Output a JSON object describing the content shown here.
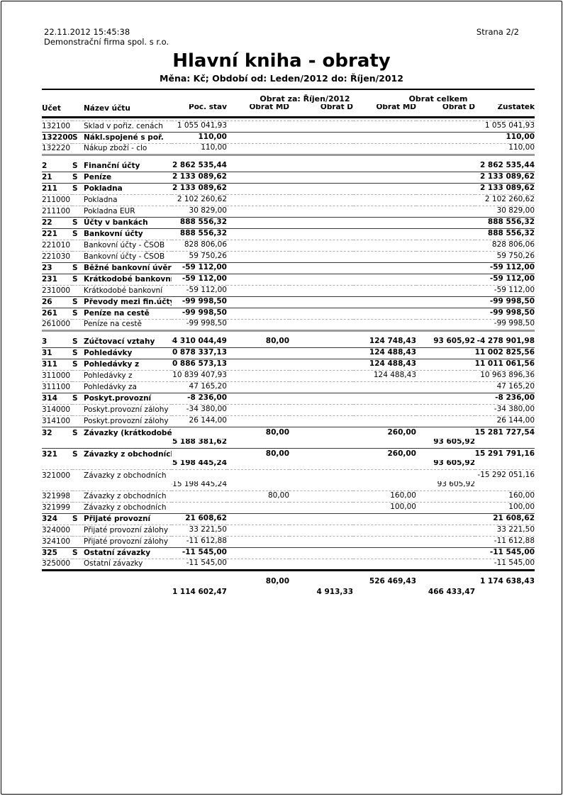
{
  "page": {
    "printed_at": "22.11.2012 15:45:38",
    "page_label": "Strana 2/2",
    "company": "Demonstrační firma spol. s r.o.",
    "title": "Hlavní kniha - obraty",
    "subtitle": "Měna: Kč; Období od: Leden/2012 do: Říjen/2012"
  },
  "table": {
    "group_headers": {
      "period": "Obrat za: Říjen/2012",
      "total": "Obrat celkem"
    },
    "columns": [
      "Účet",
      "",
      "Název účtu",
      "Poč. stav",
      "Obrat MD",
      "Obrat D",
      "Obrat MD",
      "Obrat D",
      "Zůstatek"
    ],
    "rows": [
      {
        "code": "132100",
        "s": "",
        "name": "Sklad v pořiz. cenách",
        "ps": "1 055 041,93",
        "mdr": "",
        "dr": "",
        "mdc": "",
        "dc": "",
        "z": "1 055 041,93",
        "style": "detail"
      },
      {
        "code": "132200",
        "s": "S",
        "name": "Nákl.spojené s poř.",
        "ps": "110,00",
        "mdr": "",
        "dr": "",
        "mdc": "",
        "dc": "",
        "z": "110,00",
        "style": "group"
      },
      {
        "code": "132220",
        "s": "",
        "name": "Nákup zboží - clo",
        "ps": "110,00",
        "mdr": "",
        "dr": "",
        "mdc": "",
        "dc": "",
        "z": "110,00",
        "style": "detail"
      },
      {
        "code": "2",
        "s": "S",
        "name": "Finanční účty",
        "ps": "2 862 535,44",
        "mdr": "",
        "dr": "",
        "mdc": "",
        "dc": "",
        "z": "2 862 535,44",
        "style": "class"
      },
      {
        "code": "21",
        "s": "S",
        "name": "Peníze",
        "ps": "2 133 089,62",
        "mdr": "",
        "dr": "",
        "mdc": "",
        "dc": "",
        "z": "2 133 089,62",
        "style": "group"
      },
      {
        "code": "211",
        "s": "S",
        "name": "Pokladna",
        "ps": "2 133 089,62",
        "mdr": "",
        "dr": "",
        "mdc": "",
        "dc": "",
        "z": "2 133 089,62",
        "style": "group"
      },
      {
        "code": "211000",
        "s": "",
        "name": "Pokladna",
        "ps": "2 102 260,62",
        "mdr": "",
        "dr": "",
        "mdc": "",
        "dc": "",
        "z": "2 102 260,62",
        "style": "detail"
      },
      {
        "code": "211100",
        "s": "",
        "name": "Pokladna EUR",
        "ps": "30 829,00",
        "mdr": "",
        "dr": "",
        "mdc": "",
        "dc": "",
        "z": "30 829,00",
        "style": "detail"
      },
      {
        "code": "22",
        "s": "S",
        "name": "Účty v bankách",
        "ps": "888 556,32",
        "mdr": "",
        "dr": "",
        "mdc": "",
        "dc": "",
        "z": "888 556,32",
        "style": "group"
      },
      {
        "code": "221",
        "s": "S",
        "name": "Bankovní účty",
        "ps": "888 556,32",
        "mdr": "",
        "dr": "",
        "mdc": "",
        "dc": "",
        "z": "888 556,32",
        "style": "group"
      },
      {
        "code": "221010",
        "s": "",
        "name": "Bankovní účty - ČSOB",
        "ps": "828 806,06",
        "mdr": "",
        "dr": "",
        "mdc": "",
        "dc": "",
        "z": "828 806,06",
        "style": "detail"
      },
      {
        "code": "221030",
        "s": "",
        "name": "Bankovní účty - ČSOB",
        "ps": "59 750,26",
        "mdr": "",
        "dr": "",
        "mdc": "",
        "dc": "",
        "z": "59 750,26",
        "style": "detail"
      },
      {
        "code": "23",
        "s": "S",
        "name": "Běžné bankovní úvěry",
        "ps": "-59 112,00",
        "mdr": "",
        "dr": "",
        "mdc": "",
        "dc": "",
        "z": "-59 112,00",
        "style": "group"
      },
      {
        "code": "231",
        "s": "S",
        "name": "Krátkodobé bankovní",
        "ps": "-59 112,00",
        "mdr": "",
        "dr": "",
        "mdc": "",
        "dc": "",
        "z": "-59 112,00",
        "style": "group"
      },
      {
        "code": "231000",
        "s": "",
        "name": "Krátkodobé bankovní",
        "ps": "-59 112,00",
        "mdr": "",
        "dr": "",
        "mdc": "",
        "dc": "",
        "z": "-59 112,00",
        "style": "detail"
      },
      {
        "code": "26",
        "s": "S",
        "name": "Převody mezi fin.účty",
        "ps": "-99 998,50",
        "mdr": "",
        "dr": "",
        "mdc": "",
        "dc": "",
        "z": "-99 998,50",
        "style": "group"
      },
      {
        "code": "261",
        "s": "S",
        "name": "Peníze na cestě",
        "ps": "-99 998,50",
        "mdr": "",
        "dr": "",
        "mdc": "",
        "dc": "",
        "z": "-99 998,50",
        "style": "group"
      },
      {
        "code": "261000",
        "s": "",
        "name": "Peníze na cestě",
        "ps": "-99 998,50",
        "mdr": "",
        "dr": "",
        "mdc": "",
        "dc": "",
        "z": "-99 998,50",
        "style": "detail"
      },
      {
        "code": "3",
        "s": "S",
        "name": "Zúčtovací vztahy",
        "ps": "-4 310 044,49",
        "mdr": "80,00",
        "dr": "",
        "mdc": "124 748,43",
        "dc": "93 605,92",
        "z": "-4 278 901,98",
        "style": "class"
      },
      {
        "code": "31",
        "s": "S",
        "name": "Pohledávky",
        "ps": "10 878 337,13",
        "mdr": "",
        "dr": "",
        "mdc": "124 488,43",
        "dc": "",
        "z": "11 002 825,56",
        "style": "group"
      },
      {
        "code": "311",
        "s": "S",
        "name": "Pohledávky z",
        "ps": "10 886 573,13",
        "mdr": "",
        "dr": "",
        "mdc": "124 488,43",
        "dc": "",
        "z": "11 011 061,56",
        "style": "group"
      },
      {
        "code": "311000",
        "s": "",
        "name": "Pohledávky z",
        "ps": "10 839 407,93",
        "mdr": "",
        "dr": "",
        "mdc": "124 488,43",
        "dc": "",
        "z": "10 963 896,36",
        "style": "detail"
      },
      {
        "code": "311100",
        "s": "",
        "name": "Pohledávky za",
        "ps": "47 165,20",
        "mdr": "",
        "dr": "",
        "mdc": "",
        "dc": "",
        "z": "47 165,20",
        "style": "detail"
      },
      {
        "code": "314",
        "s": "S",
        "name": "Poskyt.provozní",
        "ps": "-8 236,00",
        "mdr": "",
        "dr": "",
        "mdc": "",
        "dc": "",
        "z": "-8 236,00",
        "style": "group"
      },
      {
        "code": "314000",
        "s": "",
        "name": "Poskyt.provozní zálohy",
        "ps": "-34 380,00",
        "mdr": "",
        "dr": "",
        "mdc": "",
        "dc": "",
        "z": "-34 380,00",
        "style": "detail"
      },
      {
        "code": "314100",
        "s": "",
        "name": "Poskyt.provozní zálohy",
        "ps": "26 144,00",
        "mdr": "",
        "dr": "",
        "mdc": "",
        "dc": "",
        "z": "26 144,00",
        "style": "detail"
      },
      {
        "code": "32",
        "s": "S",
        "name": "Závazky (krátkodobé)",
        "ps": "",
        "mdr": "80,00",
        "dr": "",
        "mdc": "260,00",
        "dc": "",
        "z": "-15 281 727,54",
        "style": "group",
        "line2": {
          "ps": "-15 188 381,62",
          "dc": "93 605,92"
        }
      },
      {
        "code": "321",
        "s": "S",
        "name": "Závazky z obchodních",
        "ps": "",
        "mdr": "80,00",
        "dr": "",
        "mdc": "260,00",
        "dc": "",
        "z": "-15 291 791,16",
        "style": "group",
        "line2": {
          "ps": "-15 198 445,24",
          "dc": "93 605,92"
        }
      },
      {
        "code": "321000",
        "s": "",
        "name": "Závazky z obchodních",
        "ps": "",
        "mdr": "",
        "dr": "",
        "mdc": "",
        "dc": "",
        "z": "-15 292 051,16",
        "style": "detail",
        "line2": {
          "ps": "-15 198 445,24",
          "dc": "93 605,92"
        }
      },
      {
        "code": "321998",
        "s": "",
        "name": "Závazky z obchodních",
        "ps": "",
        "mdr": "80,00",
        "dr": "",
        "mdc": "160,00",
        "dc": "",
        "z": "160,00",
        "style": "detail"
      },
      {
        "code": "321999",
        "s": "",
        "name": "Závazky z obchodních",
        "ps": "",
        "mdr": "",
        "dr": "",
        "mdc": "100,00",
        "dc": "",
        "z": "100,00",
        "style": "detail"
      },
      {
        "code": "324",
        "s": "S",
        "name": "Přijaté provozní",
        "ps": "21 608,62",
        "mdr": "",
        "dr": "",
        "mdc": "",
        "dc": "",
        "z": "21 608,62",
        "style": "group"
      },
      {
        "code": "324000",
        "s": "",
        "name": "Přijaté provozní zálohy",
        "ps": "33 221,50",
        "mdr": "",
        "dr": "",
        "mdc": "",
        "dc": "",
        "z": "33 221,50",
        "style": "detail"
      },
      {
        "code": "324100",
        "s": "",
        "name": "Přijaté provozní zálohy",
        "ps": "-11 612,88",
        "mdr": "",
        "dr": "",
        "mdc": "",
        "dc": "",
        "z": "-11 612,88",
        "style": "detail"
      },
      {
        "code": "325",
        "s": "S",
        "name": "Ostatní závazky",
        "ps": "-11 545,00",
        "mdr": "",
        "dr": "",
        "mdc": "",
        "dc": "",
        "z": "-11 545,00",
        "style": "group"
      },
      {
        "code": "325000",
        "s": "",
        "name": "Ostatní závazky",
        "ps": "-11 545,00",
        "mdr": "",
        "dr": "",
        "mdc": "",
        "dc": "",
        "z": "-11 545,00",
        "style": "detail"
      }
    ],
    "totals": {
      "line1": {
        "mdr": "80,00",
        "mdc": "526 469,43",
        "z": "1 174 638,43"
      },
      "line2": {
        "ps": "1 114 602,47",
        "dr": "4 913,33",
        "dc": "466 433,47"
      }
    }
  },
  "colors": {
    "text": "#000000",
    "dashed_line": "#b3b3b3",
    "group_line": "#3a3a3a",
    "class_line": "#9b9b9b",
    "heavy_line": "#000000"
  }
}
